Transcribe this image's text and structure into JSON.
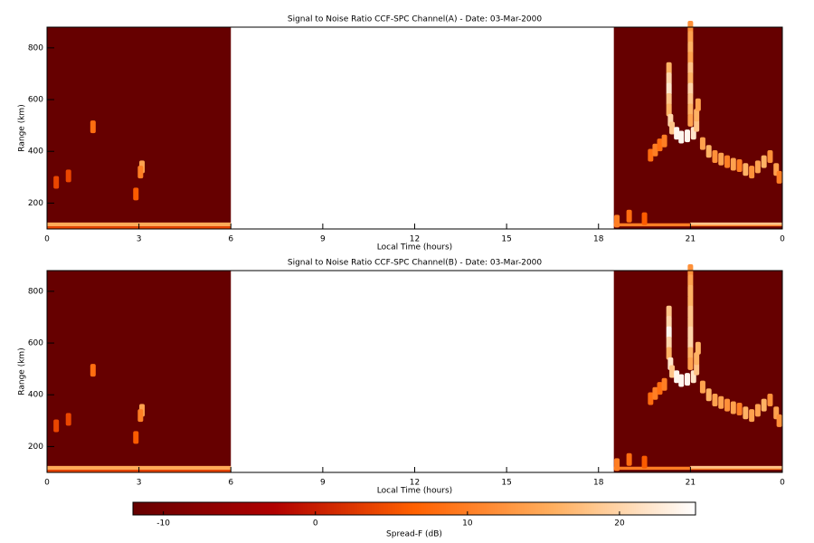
{
  "chart_data": [
    {
      "type": "heatmap",
      "title": "Signal to Noise Ratio CCF-SPC Channel(A) - Date: 03-Mar-2000",
      "xlabel": "Local Time (hours)",
      "ylabel": "Range (km)",
      "xlim": [
        0,
        24
      ],
      "xticks": [
        0,
        3,
        6,
        9,
        12,
        15,
        18,
        21,
        {
          "value": 24,
          "label": "0"
        }
      ],
      "ylim": [
        100,
        880
      ],
      "yticks": [
        200,
        400,
        600,
        800
      ],
      "regions": {
        "x0": [
          0,
          18.5,
          0,
          0,
          18.5,
          21
        ],
        "x1": [
          6,
          24,
          6,
          6,
          24,
          24
        ],
        "y0": [
          100,
          100,
          110,
          100,
          110,
          115
        ],
        "y1": [
          880,
          880,
          125,
          110,
          122,
          125
        ],
        "z": [
          -12,
          -12,
          15,
          4,
          10,
          18
        ]
      },
      "points": {
        "x": [
          1.5,
          3.1,
          3.05,
          2.9,
          0.3,
          0.7,
          21.0,
          21.0,
          21.0,
          21.0,
          21.0,
          21.0,
          21.0,
          21.0,
          21.0,
          21.0,
          20.3,
          20.3,
          20.3,
          20.3,
          20.3,
          20.35,
          20.4,
          20.55,
          20.7,
          20.9,
          21.1,
          21.2,
          21.2,
          21.25,
          21.4,
          21.6,
          21.8,
          22.0,
          22.2,
          22.4,
          22.6,
          22.8,
          23.0,
          23.2,
          23.4,
          23.6,
          23.8,
          23.9,
          19.7,
          19.85,
          20.0,
          20.15,
          18.6,
          19.0,
          19.5
        ],
        "y": [
          495,
          340,
          320,
          235,
          280,
          305,
          880,
          840,
          800,
          760,
          720,
          680,
          640,
          600,
          560,
          520,
          720,
          680,
          640,
          600,
          560,
          520,
          490,
          470,
          455,
          460,
          470,
          500,
          540,
          580,
          430,
          400,
          380,
          370,
          360,
          350,
          345,
          330,
          320,
          340,
          360,
          380,
          330,
          300,
          385,
          405,
          425,
          440,
          130,
          150,
          140
        ],
        "z": [
          8,
          14,
          10,
          6,
          4,
          4,
          12,
          14,
          16,
          14,
          18,
          16,
          20,
          18,
          16,
          14,
          16,
          20,
          22,
          18,
          16,
          20,
          18,
          24,
          24,
          24,
          22,
          18,
          16,
          14,
          14,
          16,
          12,
          14,
          10,
          14,
          10,
          16,
          12,
          14,
          16,
          12,
          14,
          10,
          8,
          10,
          8,
          10,
          10,
          8,
          6
        ]
      }
    },
    {
      "type": "heatmap",
      "title": "Signal to Noise Ratio CCF-SPC Channel(B) - Date: 03-Mar-2000",
      "xlabel": "Local Time (hours)",
      "ylabel": "Range (km)",
      "xlim": [
        0,
        24
      ],
      "xticks": [
        0,
        3,
        6,
        9,
        12,
        15,
        18,
        21,
        {
          "value": 24,
          "label": "0"
        }
      ],
      "ylim": [
        100,
        880
      ],
      "yticks": [
        200,
        400,
        600,
        800
      ],
      "regions": {
        "x0": [
          0,
          18.5,
          0,
          0,
          18.5,
          21
        ],
        "x1": [
          6,
          24,
          6,
          6,
          24,
          24
        ],
        "y0": [
          100,
          100,
          110,
          100,
          110,
          115
        ],
        "y1": [
          880,
          880,
          125,
          110,
          122,
          125
        ],
        "z": [
          -12,
          -12,
          15,
          4,
          10,
          18
        ]
      },
      "points": {
        "x": [
          1.5,
          3.1,
          3.05,
          2.9,
          0.3,
          0.7,
          21.0,
          21.0,
          21.0,
          21.0,
          21.0,
          21.0,
          21.0,
          21.0,
          21.0,
          21.0,
          20.3,
          20.3,
          20.3,
          20.3,
          20.3,
          20.35,
          20.4,
          20.55,
          20.7,
          20.9,
          21.1,
          21.2,
          21.2,
          21.25,
          21.4,
          21.6,
          21.8,
          22.0,
          22.2,
          22.4,
          22.6,
          22.8,
          23.0,
          23.2,
          23.4,
          23.6,
          23.8,
          23.9,
          19.7,
          19.85,
          20.0,
          20.15,
          18.6,
          19.0,
          19.5
        ],
        "y": [
          495,
          340,
          320,
          235,
          280,
          305,
          880,
          840,
          800,
          760,
          720,
          680,
          640,
          600,
          560,
          520,
          720,
          680,
          640,
          600,
          560,
          520,
          490,
          470,
          455,
          460,
          470,
          500,
          540,
          580,
          430,
          400,
          380,
          370,
          360,
          350,
          345,
          330,
          320,
          340,
          360,
          380,
          330,
          300,
          385,
          405,
          425,
          440,
          130,
          150,
          140
        ],
        "z": [
          8,
          14,
          10,
          6,
          4,
          4,
          12,
          14,
          16,
          16,
          18,
          18,
          20,
          20,
          16,
          14,
          18,
          20,
          24,
          20,
          16,
          22,
          18,
          24,
          24,
          24,
          22,
          18,
          16,
          16,
          14,
          16,
          14,
          14,
          12,
          14,
          10,
          16,
          14,
          14,
          16,
          12,
          14,
          12,
          8,
          10,
          8,
          10,
          10,
          8,
          6
        ]
      }
    }
  ],
  "colorbar": {
    "label": "Spread-F (dB)",
    "zlim": [
      -12,
      25
    ],
    "ticks": [
      -10,
      0,
      10,
      20
    ],
    "colors": [
      "#660000",
      "#b00000",
      "#ff6000",
      "#ffb060",
      "#ffffff"
    ]
  }
}
